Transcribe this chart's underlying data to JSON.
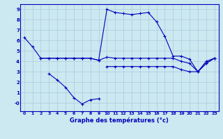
{
  "title": "Graphe des températures (°c)",
  "bg_color": "#cce8f0",
  "grid_color": "#aaccdd",
  "line_color": "#0000bb",
  "xlim": [
    -0.5,
    23.5
  ],
  "ylim": [
    -0.8,
    9.5
  ],
  "xticks": [
    0,
    1,
    2,
    3,
    4,
    5,
    6,
    7,
    8,
    9,
    10,
    11,
    12,
    13,
    14,
    15,
    16,
    17,
    18,
    19,
    20,
    21,
    22,
    23
  ],
  "yticks": [
    0,
    1,
    2,
    3,
    4,
    5,
    6,
    7,
    8,
    9
  ],
  "ytick_labels": [
    "-0",
    "1",
    "2",
    "3",
    "4",
    "5",
    "6",
    "7",
    "8",
    "9"
  ],
  "line1_x": [
    0,
    1,
    2,
    3,
    4,
    5,
    6,
    7,
    8,
    9,
    10,
    11,
    12,
    13,
    14,
    15,
    16,
    17,
    18,
    19,
    20,
    21,
    22,
    23
  ],
  "line1_y": [
    6.3,
    5.4,
    4.3,
    4.3,
    4.3,
    4.3,
    4.3,
    4.3,
    4.3,
    4.1,
    9.0,
    8.7,
    8.6,
    8.5,
    8.6,
    8.7,
    7.8,
    6.4,
    4.5,
    4.5,
    4.2,
    3.0,
    4.0,
    4.3
  ],
  "line2_x": [
    2,
    3,
    4,
    5,
    6,
    7,
    8,
    9,
    10,
    11,
    12,
    13,
    14,
    15,
    16,
    17,
    18,
    19,
    20,
    21,
    22,
    23
  ],
  "line2_y": [
    4.3,
    4.3,
    4.3,
    4.3,
    4.3,
    4.3,
    4.3,
    4.1,
    4.4,
    4.3,
    4.3,
    4.3,
    4.3,
    4.3,
    4.3,
    4.3,
    4.3,
    4.0,
    3.8,
    3.0,
    3.8,
    4.3
  ],
  "line3_x": [
    3,
    4,
    5,
    6,
    7,
    8,
    9
  ],
  "line3_y": [
    2.8,
    2.2,
    1.5,
    0.5,
    -0.1,
    0.3,
    0.4
  ],
  "line4_x": [
    10,
    11,
    12,
    13,
    14,
    15,
    16,
    17,
    18,
    19,
    20,
    21,
    22,
    23
  ],
  "line4_y": [
    3.5,
    3.5,
    3.5,
    3.5,
    3.5,
    3.5,
    3.5,
    3.5,
    3.5,
    3.2,
    3.0,
    3.0,
    3.8,
    4.3
  ]
}
